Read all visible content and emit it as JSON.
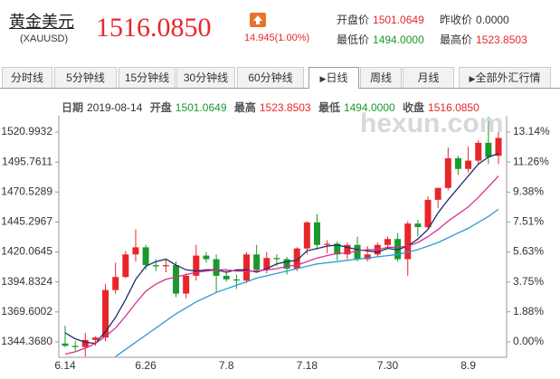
{
  "header": {
    "name": "黄金美元",
    "code": "(XAUUSD)",
    "price": "1516.0850",
    "change": "14.945(1.00%)",
    "stats": [
      {
        "label": "开盘价",
        "value": "1501.0649"
      },
      {
        "label": "昨收价",
        "value": "0.0000"
      },
      {
        "label": "最低价",
        "value": "1494.0000"
      },
      {
        "label": "最高价",
        "value": "1523.8503"
      }
    ]
  },
  "tabs": [
    "分时线",
    "5分钟线",
    "15分钟线",
    "30分钟线",
    "60分钟线",
    "日线",
    "周线",
    "月线",
    "全部外汇行情"
  ],
  "info": [
    {
      "label": "日期",
      "value": "2019-08-14"
    },
    {
      "label": "开盘",
      "value": "1501.0649"
    },
    {
      "label": "最高",
      "value": "1523.8503"
    },
    {
      "label": "最低",
      "value": "1494.0000"
    },
    {
      "label": "收盘",
      "value": "1516.0850"
    }
  ],
  "watermark": "hexun.com",
  "chart_data": {
    "type": "candlestick",
    "categories": [
      "6.14",
      null,
      null,
      null,
      null,
      null,
      null,
      null,
      "6.26",
      null,
      null,
      null,
      null,
      null,
      null,
      null,
      "7.8",
      null,
      null,
      null,
      null,
      null,
      null,
      null,
      "7.18",
      null,
      null,
      null,
      null,
      null,
      null,
      null,
      "7.30",
      null,
      null,
      null,
      null,
      null,
      null,
      null,
      "8.9",
      null,
      null,
      null
    ],
    "open": [
      1343,
      1341,
      1340,
      1346,
      1348,
      1388,
      1399,
      1418,
      1424,
      1409,
      1408,
      1409,
      1385,
      1400,
      1417,
      1414,
      1400,
      1397,
      1396,
      1418,
      1405,
      1415,
      1414,
      1406,
      1423,
      1445,
      1426,
      1427,
      1418,
      1426,
      1414,
      1418,
      1426,
      1431,
      1414,
      1444,
      1441,
      1464,
      1474,
      1499,
      1490,
      1497,
      1512,
      1501.0649
    ],
    "high": [
      1358,
      1345,
      1352,
      1349,
      1393,
      1411,
      1421,
      1439,
      1426,
      1414,
      1414,
      1412,
      1402,
      1426,
      1420,
      1418,
      1405,
      1401,
      1420,
      1426,
      1420,
      1418,
      1416,
      1424,
      1446,
      1452,
      1430,
      1429,
      1428,
      1433,
      1425,
      1428,
      1433,
      1436,
      1446,
      1447,
      1467,
      1474,
      1508,
      1501,
      1509,
      1514,
      1534,
      1523.8503
    ],
    "low": [
      1340,
      1337,
      1332,
      1341,
      1345,
      1385,
      1398,
      1412,
      1405,
      1404,
      1403,
      1382,
      1381,
      1396,
      1411,
      1386,
      1395,
      1389,
      1394,
      1404,
      1402,
      1408,
      1401,
      1404,
      1418,
      1422,
      1419,
      1413,
      1414,
      1412,
      1412,
      1416,
      1424,
      1412,
      1400,
      1433,
      1440,
      1457,
      1472,
      1485,
      1487,
      1494,
      1494,
      1494
    ],
    "close": [
      1341,
      1340,
      1346,
      1348,
      1388,
      1399,
      1418,
      1424,
      1409,
      1408,
      1409,
      1385,
      1400,
      1417,
      1414,
      1400,
      1397,
      1396,
      1418,
      1405,
      1415,
      1414,
      1406,
      1423,
      1445,
      1426,
      1427,
      1418,
      1426,
      1414,
      1418,
      1426,
      1431,
      1414,
      1444,
      1441,
      1464,
      1474,
      1499,
      1490,
      1497,
      1512,
      1500,
      1516.085
    ],
    "up_color": "#e8262a",
    "down_color": "#1a9a2c",
    "lines": [
      {
        "color": "#1f2d6b",
        "values": [
          1352,
          1347,
          1344,
          1343,
          1353,
          1365,
          1380,
          1397,
          1408,
          1412,
          1414,
          1409,
          1405,
          1404,
          1405,
          1405,
          1403,
          1405,
          1405,
          1403,
          1406,
          1410,
          1412,
          1413,
          1421,
          1423,
          1425,
          1426,
          1424,
          1422,
          1421,
          1420,
          1423,
          1422,
          1425,
          1431,
          1439,
          1453,
          1464,
          1474,
          1484,
          1494,
          1500,
          1503
        ]
      },
      {
        "color": "#d6308a",
        "values": [
          1334,
          1336,
          1339,
          1343,
          1349,
          1356,
          1366,
          1377,
          1387,
          1393,
          1397,
          1399,
          1401,
          1403,
          1404,
          1405,
          1405,
          1404,
          1404,
          1404,
          1405,
          1406,
          1408,
          1409,
          1412,
          1415,
          1417,
          1419,
          1419,
          1421,
          1422,
          1422,
          1424,
          1424,
          1425,
          1428,
          1433,
          1439,
          1446,
          1452,
          1458,
          1466,
          1475,
          1484
        ]
      },
      {
        "color": "#2b9bd4",
        "values": [
          null,
          null,
          null,
          null,
          null,
          1332,
          1338,
          1344,
          1350,
          1356,
          1362,
          1368,
          1373,
          1378,
          1382,
          1386,
          1389,
          1392,
          1395,
          1398,
          1400,
          1402,
          1404,
          1406,
          1408,
          1410,
          1411,
          1412,
          1413,
          1414,
          1415,
          1416,
          1417,
          1418,
          1420,
          1422,
          1425,
          1428,
          1432,
          1436,
          1440,
          1445,
          1450,
          1456
        ]
      }
    ],
    "ylim": [
      1331.37,
      1534.76
    ],
    "yticks": [
      1520.9932,
      1495.7611,
      1470.5289,
      1445.2967,
      1420.0645,
      1394.8324,
      1369.6002,
      {
        "value": 1344.368,
        "label": "1344.3680"
      }
    ],
    "y2lim": [
      -0.97,
      14.16
    ],
    "y2ticks": [
      {
        "value": 13.14,
        "label": "13.14%"
      },
      {
        "value": 11.26,
        "label": "11.26%"
      },
      {
        "value": 9.38,
        "label": "9.38%"
      },
      {
        "value": 7.51,
        "label": "7.51%"
      },
      {
        "value": 5.63,
        "label": "5.63%"
      },
      {
        "value": 3.75,
        "label": "3.75%"
      },
      {
        "value": 1.88,
        "label": "1.88%"
      },
      {
        "value": 0,
        "label": "0.00%"
      }
    ]
  }
}
